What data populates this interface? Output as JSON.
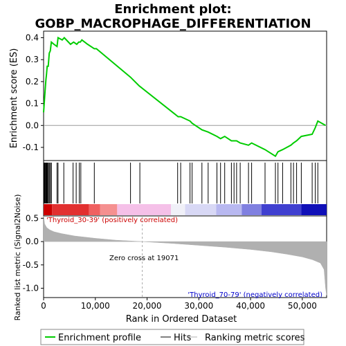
{
  "colors": {
    "enrichment_line": "#00cc00",
    "hit_tick": "#000000",
    "metric_fill": "#b0b0b0",
    "zero_cross_line": "#aaaaaa",
    "pos_label": "#cc0000",
    "neg_label": "#0000cc"
  },
  "chart_data": {
    "type": "line",
    "title_line1": "Enrichment plot:",
    "title_line2": "GOBP_MACROPHAGE_DIFFERENTIATION",
    "xlabel": "Rank in Ordered Dataset",
    "xlim": [
      0,
      54700
    ],
    "x_ticks": [
      0,
      10000,
      20000,
      30000,
      40000,
      50000
    ],
    "x_tick_labels": [
      "0",
      "10,000",
      "20,000",
      "30,000",
      "40,000",
      "50,000"
    ],
    "es_panel": {
      "ylabel": "Enrichment score (ES)",
      "ylim": [
        -0.16,
        0.43
      ],
      "y_ticks": [
        -0.1,
        0.0,
        0.1,
        0.2,
        0.3,
        0.4
      ],
      "y_tick_labels": [
        "-0.1",
        "0.0",
        "0.1",
        "0.2",
        "0.3",
        "0.4"
      ],
      "series": [
        {
          "name": "Enrichment profile",
          "x": [
            0,
            150,
            300,
            450,
            550,
            700,
            900,
            1100,
            1300,
            1500,
            2000,
            2600,
            2800,
            3600,
            4000,
            5200,
            5800,
            6400,
            6800,
            7100,
            7400,
            8500,
            9800,
            10200,
            16800,
            18500,
            26000,
            26500,
            28300,
            28700,
            30600,
            31800,
            33500,
            34200,
            35000,
            36300,
            36800,
            37300,
            38000,
            39600,
            40200,
            42800,
            44800,
            45300,
            46200,
            47800,
            48300,
            48900,
            49800,
            51900,
            52500,
            53000,
            54500
          ],
          "y": [
            0.06,
            0.11,
            0.16,
            0.21,
            0.23,
            0.27,
            0.27,
            0.33,
            0.34,
            0.38,
            0.37,
            0.36,
            0.4,
            0.39,
            0.4,
            0.37,
            0.38,
            0.37,
            0.38,
            0.38,
            0.39,
            0.37,
            0.35,
            0.35,
            0.22,
            0.18,
            0.04,
            0.04,
            0.02,
            0.01,
            -0.02,
            -0.03,
            -0.05,
            -0.06,
            -0.05,
            -0.07,
            -0.07,
            -0.07,
            -0.08,
            -0.09,
            -0.08,
            -0.11,
            -0.14,
            -0.12,
            -0.11,
            -0.09,
            -0.08,
            -0.07,
            -0.05,
            -0.04,
            -0.01,
            0.02,
            0.0
          ]
        }
      ]
    },
    "hit_ranks": [
      100,
      200,
      350,
      450,
      550,
      650,
      800,
      950,
      1150,
      1350,
      1500,
      2600,
      2800,
      3900,
      5700,
      6300,
      6900,
      7200,
      9800,
      16800,
      18600,
      25900,
      26500,
      28300,
      28700,
      30600,
      31800,
      33500,
      34200,
      35000,
      36300,
      36800,
      37300,
      38000,
      39600,
      40200,
      42800,
      44800,
      45300,
      46200,
      47800,
      48300,
      48900,
      49800,
      51900,
      52500,
      53000
    ],
    "metric_panel": {
      "ylabel": "Ranked list metric (Signal2Noise)",
      "ylim": [
        -1.2,
        0.55
      ],
      "y_ticks": [
        -1.0,
        -0.5,
        0.0,
        0.5
      ],
      "y_tick_labels": [
        "-1.0",
        "-0.5",
        "0.0",
        "0.5"
      ],
      "zero_cross_rank": 19071,
      "zero_cross_label": "Zero cross at 19071",
      "curve_x": [
        0,
        200,
        600,
        1200,
        2000,
        3500,
        6000,
        10000,
        14000,
        19071,
        25000,
        30000,
        35000,
        40000,
        44000,
        47000,
        50000,
        52000,
        53500,
        54200,
        54500,
        54700
      ],
      "curve_y": [
        0.55,
        0.38,
        0.3,
        0.25,
        0.21,
        0.17,
        0.12,
        0.07,
        0.03,
        0.0,
        -0.04,
        -0.08,
        -0.12,
        -0.17,
        -0.22,
        -0.27,
        -0.33,
        -0.39,
        -0.46,
        -0.6,
        -1.0,
        -1.15
      ],
      "pos_label": "'Thyroid_30-39' (positively correlated)",
      "neg_label": "'Thyroid_70-79' (negatively correlated)"
    },
    "legend": {
      "placement": "bottom",
      "entries": [
        "Enrichment profile",
        "Hits",
        "Ranking metric scores"
      ]
    },
    "heat_bar": {
      "segments": [
        {
          "end": 0.03,
          "color": "#cc0000"
        },
        {
          "end": 0.16,
          "color": "#e23030"
        },
        {
          "end": 0.2,
          "color": "#f06060"
        },
        {
          "end": 0.26,
          "color": "#f59090"
        },
        {
          "end": 0.45,
          "color": "#f5c0e8"
        },
        {
          "end": 0.5,
          "color": "#f0f0f8"
        },
        {
          "end": 0.61,
          "color": "#d8d8f5"
        },
        {
          "end": 0.7,
          "color": "#b8b8f0"
        },
        {
          "end": 0.77,
          "color": "#8080e0"
        },
        {
          "end": 0.91,
          "color": "#4040d0"
        },
        {
          "end": 1.0,
          "color": "#1010b8"
        }
      ]
    }
  }
}
